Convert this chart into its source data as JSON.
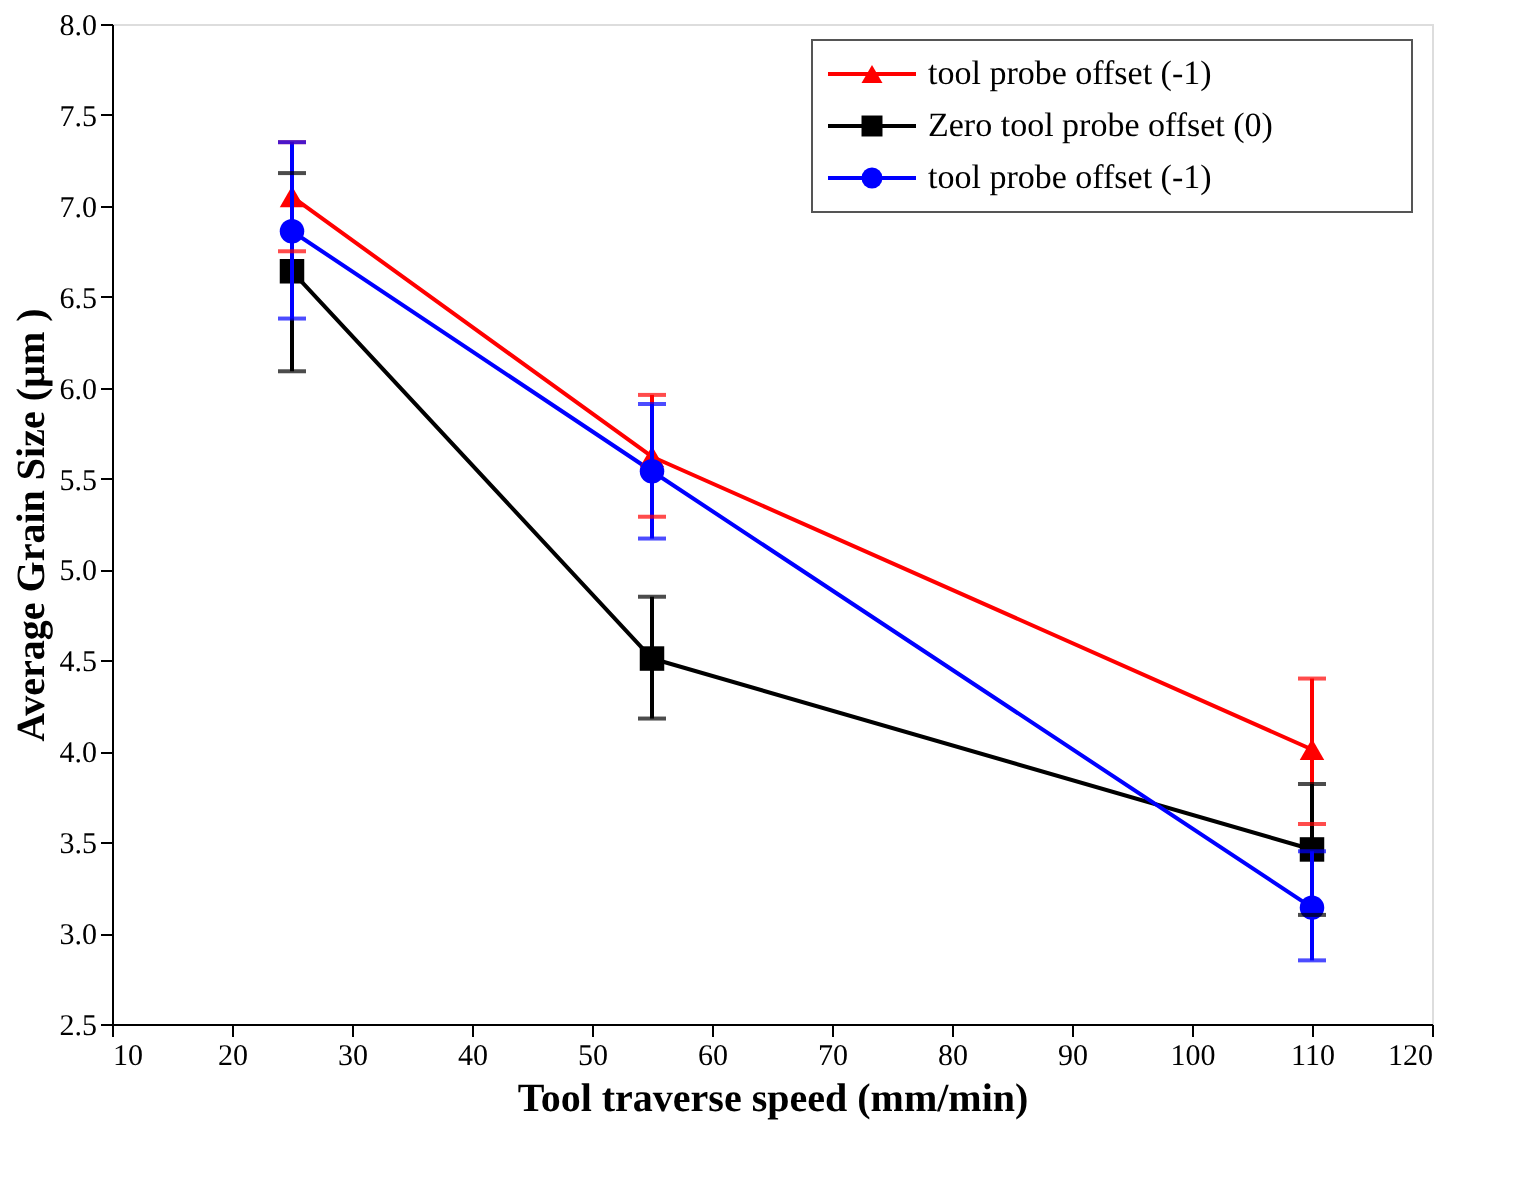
{
  "chart_data": {
    "type": "line",
    "xlabel": "Tool traverse speed (mm/min)",
    "ylabel": "Average Grain Size (µm )",
    "x": [
      25,
      55,
      110
    ],
    "series": [
      {
        "name": "tool probe offset (-1)",
        "color": "#ff0000",
        "marker": "triangle",
        "values": [
          7.05,
          5.62,
          4.01
        ],
        "errors": [
          0.3,
          [
            5.29,
            5.96
          ],
          [
            3.6,
            4.4
          ]
        ]
      },
      {
        "name": "Zero tool probe offset (0)",
        "color": "#000000",
        "marker": "square",
        "values": [
          6.64,
          4.51,
          3.46
        ],
        "errors": [
          [
            6.09,
            7.18
          ],
          [
            4.18,
            4.85
          ],
          [
            3.1,
            3.82
          ]
        ]
      },
      {
        "name": "tool probe offset (-1)",
        "color": "#0000ff",
        "marker": "circle",
        "values": [
          6.86,
          5.54,
          3.14
        ],
        "errors": [
          [
            6.38,
            7.35
          ],
          [
            5.17,
            5.91
          ],
          [
            2.85,
            3.45
          ]
        ]
      }
    ],
    "xlim": [
      10,
      120
    ],
    "xticks": [
      10,
      20,
      30,
      40,
      50,
      60,
      70,
      80,
      90,
      100,
      110,
      120
    ],
    "ylim": [
      2.5,
      8.0
    ],
    "yticks": [
      {
        "value": 2.5,
        "label": "2.5"
      },
      {
        "value": 3,
        "label": "3.0"
      },
      {
        "value": 3.5,
        "label": "3.5"
      },
      {
        "value": 4,
        "label": "4.0"
      },
      {
        "value": 4.5,
        "label": "4.5"
      },
      {
        "value": 5,
        "label": "5.0"
      },
      {
        "value": 5.5,
        "label": "5.5"
      },
      {
        "value": 6,
        "label": "6.0"
      },
      {
        "value": 6.5,
        "label": "6.5"
      },
      {
        "value": 7,
        "label": "7.0"
      },
      {
        "value": 7.5,
        "label": "7.5"
      },
      {
        "value": 8,
        "label": "8.0"
      }
    ],
    "grid": false,
    "legend": "top right",
    "line_style": "solid"
  }
}
